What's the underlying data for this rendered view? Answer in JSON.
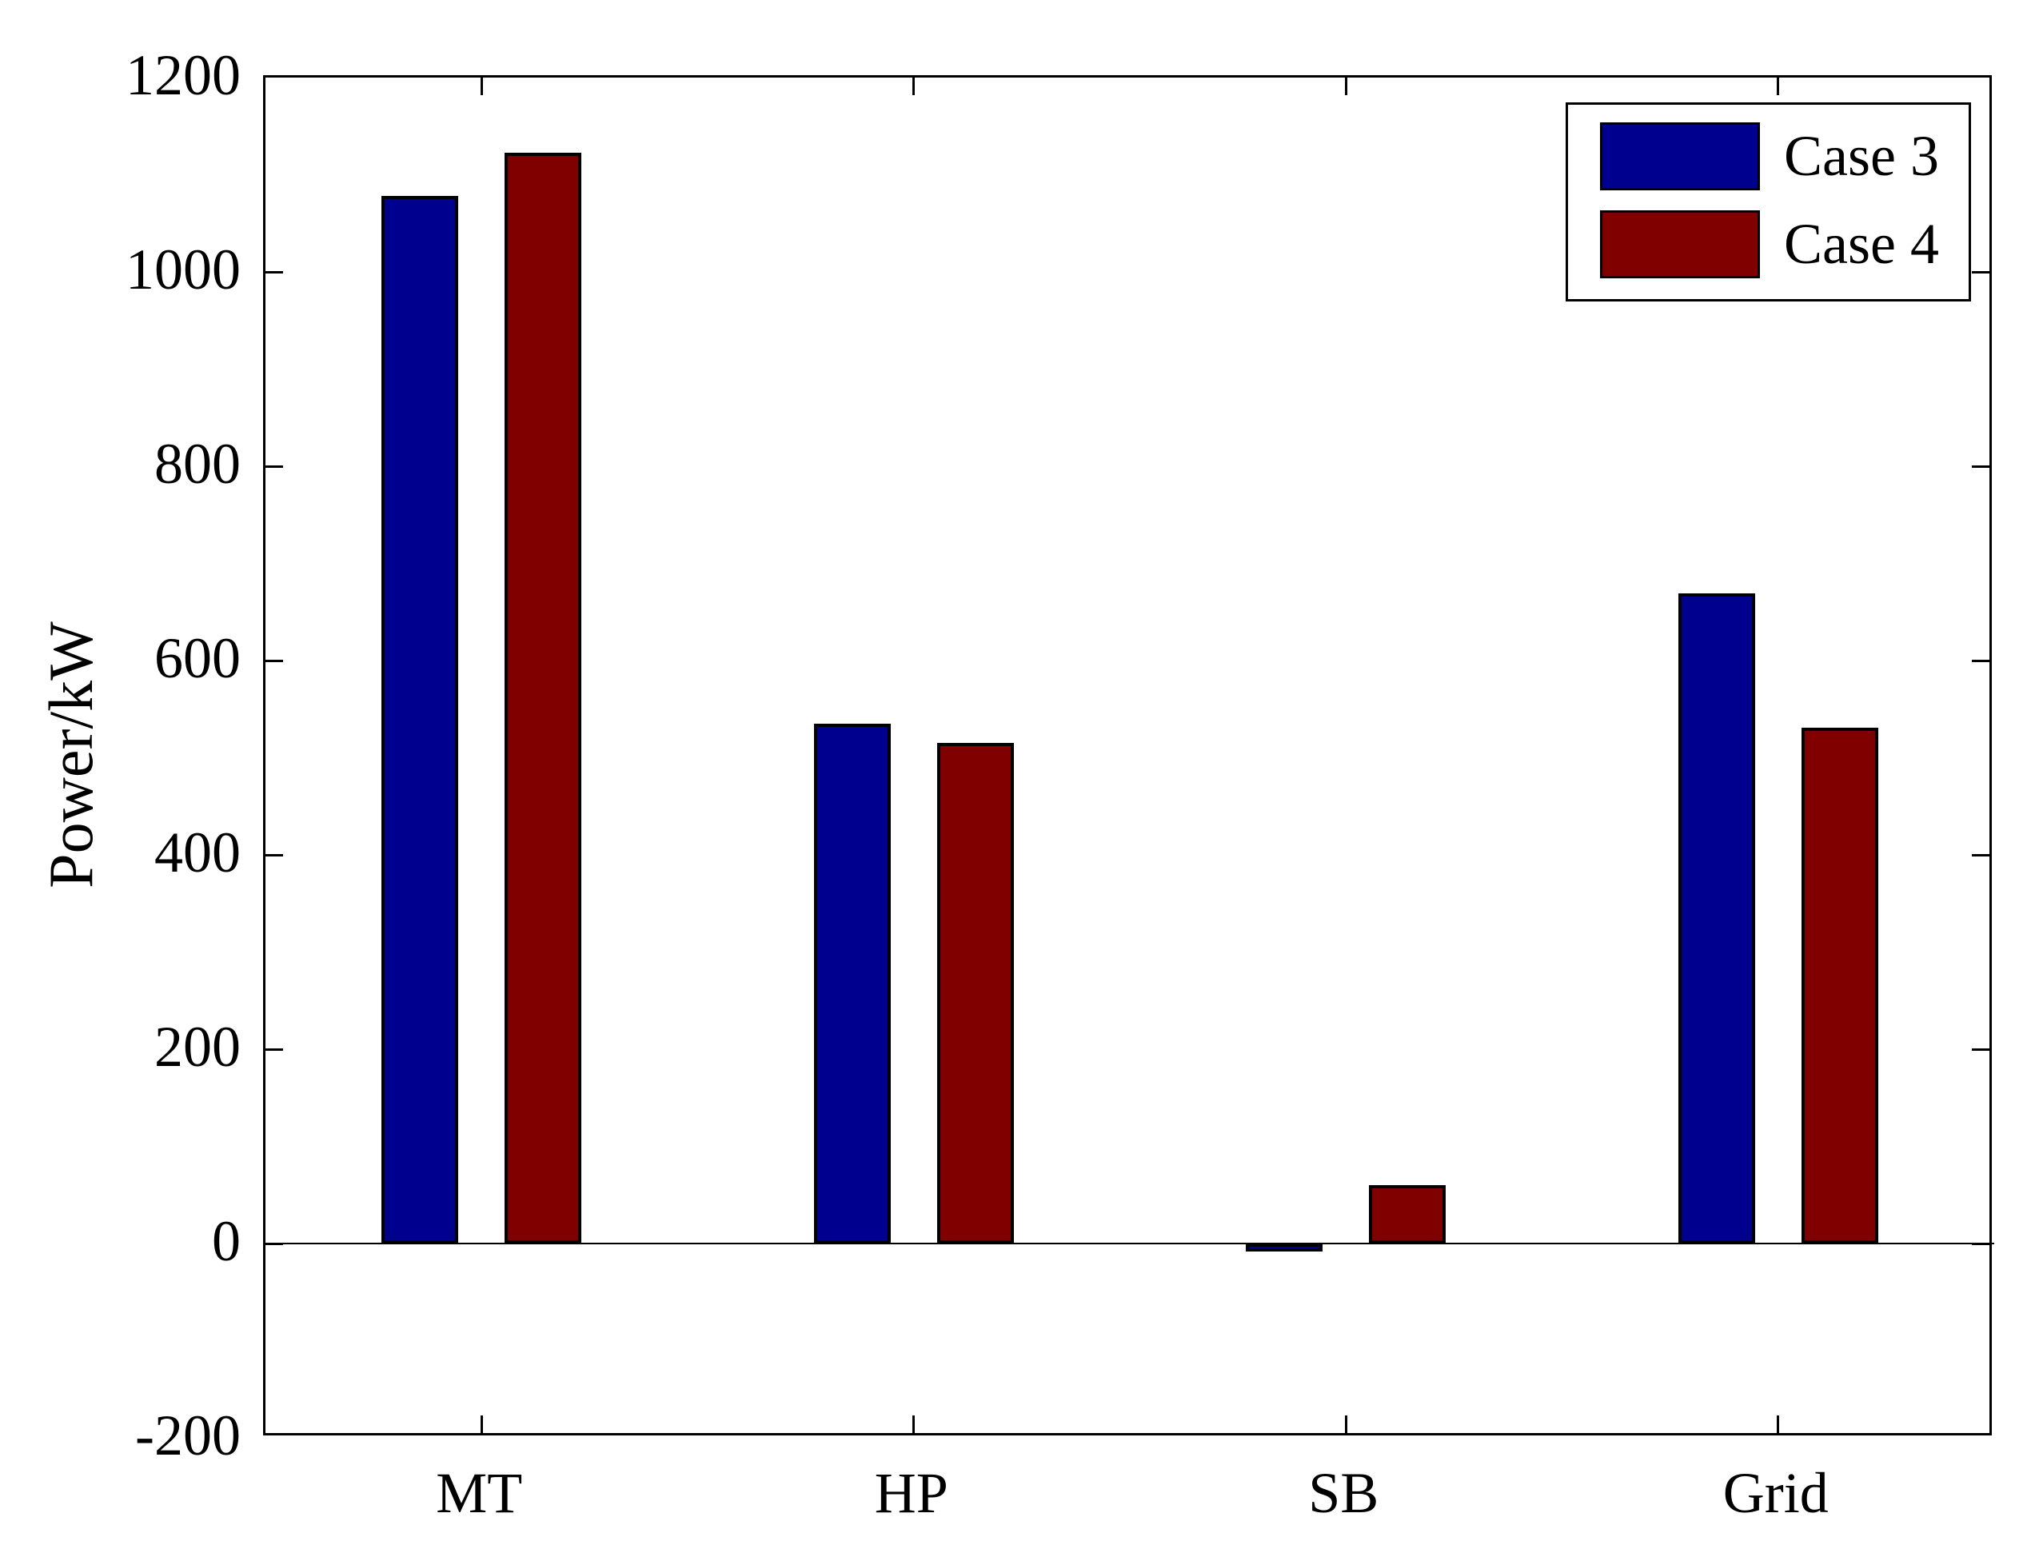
{
  "figure": {
    "background": "#ffffff",
    "frame_color": "#000000"
  },
  "chart_data": {
    "type": "bar",
    "title": "",
    "xlabel": "",
    "ylabel": "Power/kW",
    "categories": [
      "MT",
      "HP",
      "SB",
      "Grid"
    ],
    "series": [
      {
        "name": "Case 3",
        "color": "#00008F",
        "values": [
          1078,
          535,
          -8,
          669
        ]
      },
      {
        "name": "Case 4",
        "color": "#800000",
        "values": [
          1123,
          515,
          60,
          531
        ]
      }
    ],
    "ylim": [
      -200,
      1200
    ],
    "ytick_values": [
      1200,
      1000,
      800,
      600,
      400,
      200,
      0,
      -200
    ],
    "ytick_labels": [
      "1200",
      "1000",
      "800",
      "600",
      "400",
      "200",
      "0",
      "-200"
    ],
    "grid": false,
    "zero_line": true,
    "legend_position": "top-right",
    "bar_edge_color": "#000000"
  }
}
